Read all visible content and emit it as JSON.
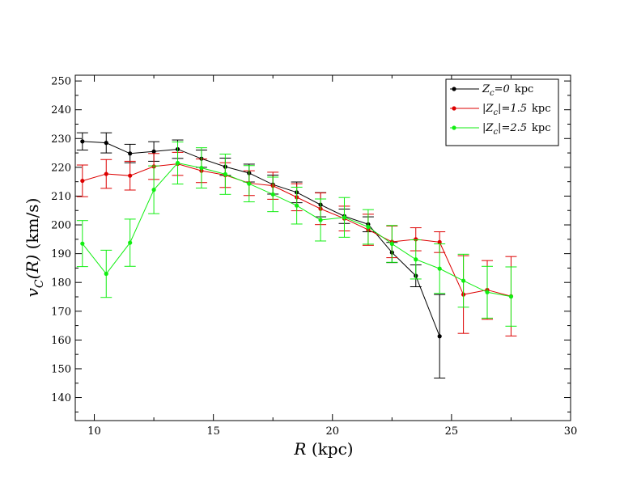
{
  "chart_data": {
    "type": "line",
    "title": "",
    "xlabel": {
      "var": "R",
      "unit": "(kpc)"
    },
    "ylabel": {
      "var": "v",
      "sub": "C",
      "arg": "(R)",
      "unit": "(km/s)"
    },
    "xlim": [
      9.2,
      30
    ],
    "ylim": [
      132,
      252
    ],
    "xticks": [
      10,
      15,
      20,
      25,
      30
    ],
    "yticks": [
      140,
      150,
      160,
      170,
      180,
      190,
      200,
      210,
      220,
      230,
      240,
      250
    ],
    "series": [
      {
        "name": "Zc=0 kpc",
        "legend": {
          "pre": "",
          "sym": "Z",
          "sub": "c",
          "post_italic": "=0",
          "unit": "kpc"
        },
        "color": "#000000",
        "x": [
          9.5,
          10.5,
          11.5,
          12.5,
          13.5,
          14.5,
          15.5,
          16.5,
          17.5,
          18.5,
          19.5,
          20.5,
          21.5,
          22.5,
          23.5,
          24.5
        ],
        "y": [
          229,
          228.5,
          224.8,
          225.5,
          226.3,
          223,
          220.2,
          218,
          214,
          211.3,
          207,
          203,
          200.2,
          190.4,
          182.3,
          161.3
        ],
        "err": [
          3,
          3.5,
          3.2,
          3.4,
          3.2,
          3,
          3,
          3.1,
          3.3,
          3.6,
          4.2,
          2.5,
          2.6,
          3.5,
          3.8,
          14.5
        ]
      },
      {
        "name": "|Zc|=1.5 kpc",
        "legend": {
          "pre": "|",
          "sym": "Z",
          "sub": "c",
          "post_plain": "|",
          "post_italic": "=1.5",
          "unit": "kpc"
        },
        "color": "#dd0000",
        "x": [
          9.5,
          10.5,
          11.5,
          12.5,
          13.5,
          14.5,
          15.5,
          16.5,
          17.5,
          18.5,
          19.5,
          20.5,
          21.5,
          22.5,
          23.5,
          24.5,
          25.5,
          26.5,
          27.5
        ],
        "y": [
          215.3,
          217.7,
          217.1,
          220.3,
          221.2,
          218.8,
          217.3,
          214.5,
          213.6,
          209.6,
          205.6,
          202.2,
          198.3,
          194.1,
          195,
          194,
          175.8,
          177.4,
          175.2
        ],
        "err": [
          5.5,
          5,
          5,
          4.5,
          4,
          4.1,
          4.3,
          4.3,
          4.7,
          4.7,
          5.5,
          4.3,
          5.4,
          5.5,
          4,
          3.6,
          13.5,
          10.2,
          13.8
        ]
      },
      {
        "name": "|Zc|=2.5 kpc",
        "legend": {
          "pre": "|",
          "sym": "Z",
          "sub": "c",
          "post_plain": "|",
          "post_italic": "=2.5",
          "unit": "kpc"
        },
        "color": "#11ee11",
        "x": [
          9.5,
          10.5,
          11.5,
          12.5,
          13.5,
          14.5,
          15.5,
          16.5,
          17.5,
          18.5,
          19.5,
          20.5,
          21.5,
          22.5,
          23.5,
          24.5,
          25.5,
          26.5,
          27.5
        ],
        "y": [
          193.5,
          183,
          193.8,
          212.2,
          221.5,
          219.8,
          217.6,
          214.3,
          210.6,
          206.7,
          201.7,
          202.6,
          199.3,
          193.4,
          188,
          184.8,
          180.6,
          176.6,
          175.1
        ],
        "err": [
          8,
          8.2,
          8.2,
          8.3,
          7.3,
          7,
          7,
          6.3,
          6,
          6.4,
          7.3,
          6.9,
          6,
          6.4,
          6.8,
          8.6,
          9.2,
          9,
          10.3
        ]
      }
    ],
    "legend_position": "top-right"
  }
}
